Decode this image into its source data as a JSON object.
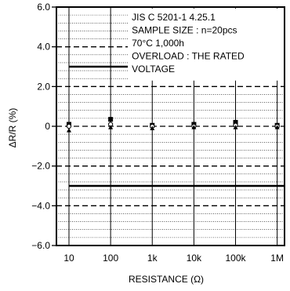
{
  "chart_data": {
    "type": "scatter",
    "xlabel": "RESISTANCE (Ω)",
    "ylabel": "ΔR/R (%)",
    "x_scale": "log",
    "ylim": [
      -6.0,
      6.0
    ],
    "xlim": [
      5,
      1500000
    ],
    "x_ticks": [
      {
        "value": 10,
        "label": "10"
      },
      {
        "value": 100,
        "label": "100"
      },
      {
        "value": 1000,
        "label": "1k"
      },
      {
        "value": 10000,
        "label": "10k"
      },
      {
        "value": 100000,
        "label": "100k"
      },
      {
        "value": 1000000,
        "label": "1M"
      }
    ],
    "y_ticks": [
      {
        "value": 6.0,
        "label": "6.0"
      },
      {
        "value": 4.0,
        "label": "4.0"
      },
      {
        "value": 2.0,
        "label": "2.0"
      },
      {
        "value": 0,
        "label": "0"
      },
      {
        "value": -2.0,
        "label": "−2.0"
      },
      {
        "value": -4.0,
        "label": "−4.0"
      },
      {
        "value": -6.0,
        "label": "−6.0"
      }
    ],
    "grid": true,
    "limit_lines": [
      3.0,
      -3.0
    ],
    "annotation_lines": [
      "JIS C 5201-1 4.25.1",
      "SAMPLE SIZE : n=20pcs",
      "70°C 1,000h",
      "OVERLOAD : THE RATED",
      " VOLTAGE"
    ],
    "series": [
      {
        "marker": "square",
        "x": [
          10,
          100,
          1000,
          10000,
          100000,
          1000000
        ],
        "y": [
          0.1,
          0.35,
          0.05,
          0.1,
          0.2,
          0.05
        ]
      },
      {
        "marker": "circle-open",
        "x": [
          10,
          100,
          1000,
          10000,
          100000,
          1000000
        ],
        "y": [
          0.0,
          0.1,
          0.0,
          0.0,
          0.05,
          0.0
        ]
      },
      {
        "marker": "triangle",
        "x": [
          10,
          100,
          1000,
          10000,
          100000,
          1000000
        ],
        "y": [
          -0.2,
          -0.05,
          -0.1,
          -0.05,
          -0.05,
          -0.05
        ]
      }
    ]
  }
}
